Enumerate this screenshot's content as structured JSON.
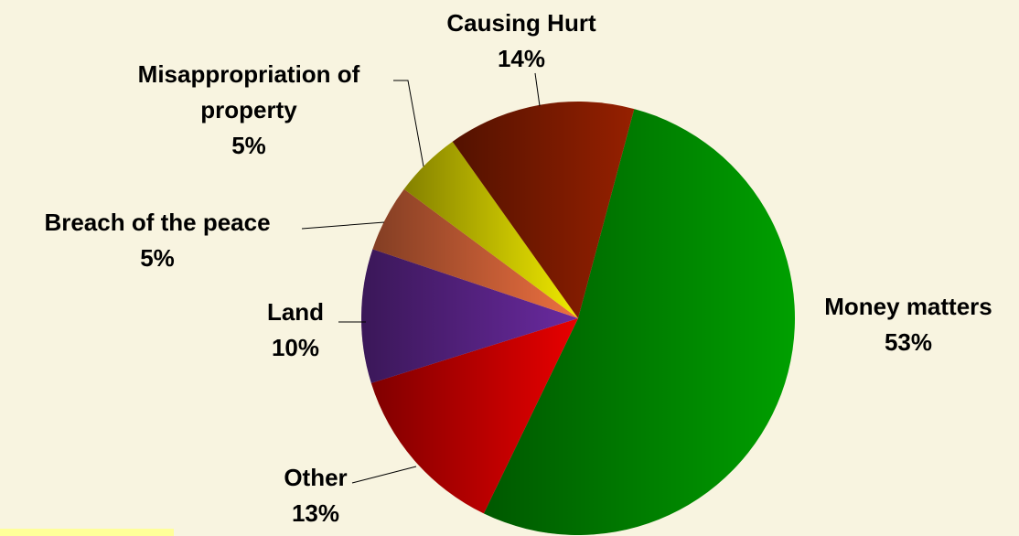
{
  "chart_data": {
    "type": "pie",
    "categories": [
      "Money matters",
      "Other",
      "Land",
      "Breach of the peace",
      "Misappropriation of property",
      "Causing Hurt"
    ],
    "values": [
      53,
      13,
      10,
      5,
      5,
      14
    ],
    "value_labels": [
      "53%",
      "13%",
      "10%",
      "5%",
      "5%",
      "14%"
    ],
    "colors": [
      "#00a000",
      "#e80000",
      "#6a2aa0",
      "#ee7040",
      "#f0ea00",
      "#962000"
    ]
  }
}
